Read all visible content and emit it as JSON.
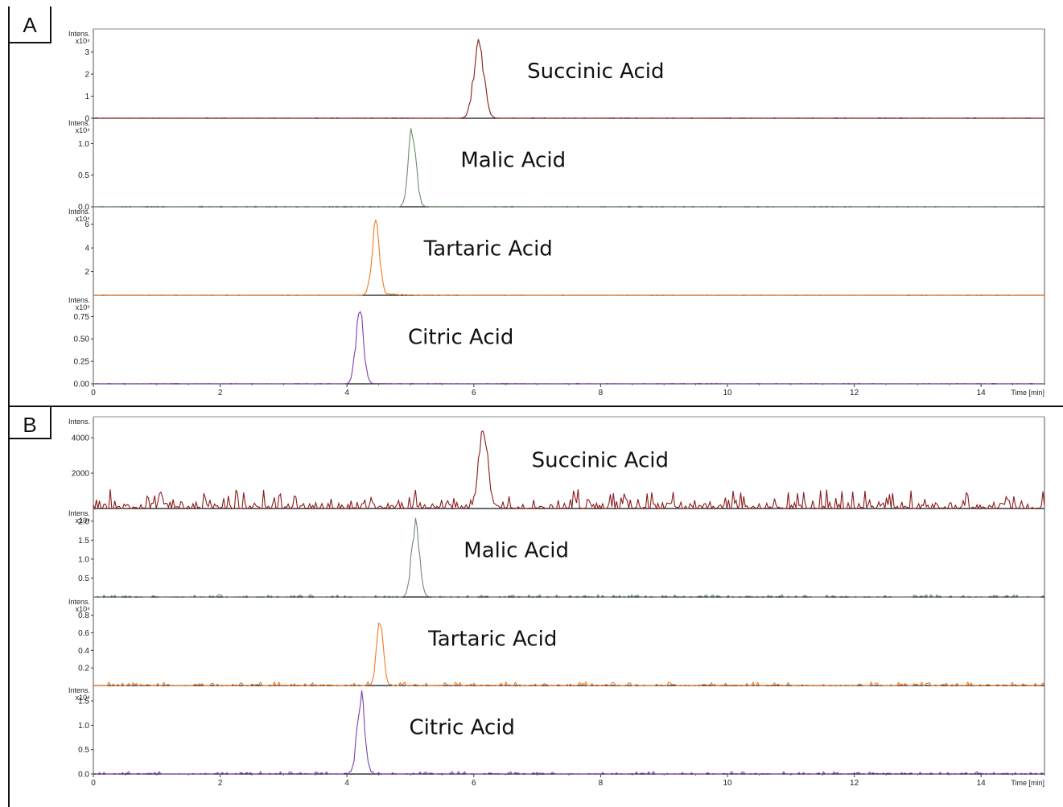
{
  "figure": {
    "x_axis": {
      "label": "Time [min]",
      "min": 0,
      "max": 15,
      "ticks": [
        0,
        2,
        4,
        6,
        8,
        10,
        12,
        14
      ]
    }
  },
  "chart_data": [
    {
      "panel": "A",
      "type": "line",
      "traces": [
        {
          "name": "Succinic Acid",
          "color": "#8b1a1a",
          "y_unit": "Intens.",
          "y_exp": "x10⁴",
          "ymax": 3.9,
          "ticks": [
            "0",
            "1",
            "2",
            "3"
          ],
          "tick_values": [
            0,
            1,
            2,
            3
          ],
          "peak_x": 6.08,
          "peak_y": 3.4,
          "peak_width": 0.08,
          "noise": 0.02,
          "tail": 0.02
        },
        {
          "name": "Malic Acid",
          "color": "#6f8a6f",
          "y_unit": "Intens.",
          "y_exp": "x10⁴",
          "ymax": 1.35,
          "ticks": [
            "0.0",
            "0.5",
            "1.0"
          ],
          "tick_values": [
            0,
            0.5,
            1.0
          ],
          "peak_x": 5.03,
          "peak_y": 1.25,
          "peak_width": 0.06,
          "noise": 0.01,
          "tail": 0.03
        },
        {
          "name": "Tartaric Acid",
          "color": "#f07a22",
          "y_unit": "Intens.",
          "y_exp": "x10⁴",
          "ymax": 7.2,
          "ticks": [
            "2",
            "4",
            "6"
          ],
          "tick_values": [
            2,
            4,
            6
          ],
          "peak_x": 4.45,
          "peak_y": 5.8,
          "peak_width": 0.06,
          "noise": 0.03,
          "tail": 0.5
        },
        {
          "name": "Citric Acid",
          "color": "#7a3fb0",
          "y_unit": "Intens.",
          "y_exp": "x10⁵",
          "ymax": 0.95,
          "ticks": [
            "0.00",
            "0.25",
            "0.50",
            "0.75"
          ],
          "tick_values": [
            0,
            0.25,
            0.5,
            0.75
          ],
          "peak_x": 4.2,
          "peak_y": 0.82,
          "peak_width": 0.06,
          "noise": 0.005,
          "tail": 0.1
        }
      ]
    },
    {
      "panel": "B",
      "type": "line",
      "traces": [
        {
          "name": "Succinic Acid",
          "color": "#8b1a1a",
          "y_unit": "Intens.",
          "y_exp": "",
          "ymax": 5000,
          "ticks": [
            "2000",
            "4000"
          ],
          "tick_values": [
            2000,
            4000
          ],
          "peak_x": 6.15,
          "peak_y": 4300,
          "peak_width": 0.07,
          "noise": 1100,
          "tail": 0.1
        },
        {
          "name": "Malic Acid",
          "color": "#6f8a6f",
          "y_unit": "Intens.",
          "y_exp": "x10⁴",
          "ymax": 2.25,
          "ticks": [
            "0.5",
            "1.0",
            "1.5",
            "2.0"
          ],
          "tick_values": [
            0.5,
            1.0,
            1.5,
            2.0
          ],
          "peak_x": 5.08,
          "peak_y": 1.95,
          "peak_width": 0.06,
          "noise": 0.06,
          "tail": 0.05
        },
        {
          "name": "Tartaric Acid",
          "color": "#f07a22",
          "y_unit": "Intens.",
          "y_exp": "x10⁴",
          "ymax": 0.97,
          "ticks": [
            "0.2",
            "0.4",
            "0.6",
            "0.8"
          ],
          "tick_values": [
            0.2,
            0.4,
            0.6,
            0.8
          ],
          "peak_x": 4.52,
          "peak_y": 0.8,
          "peak_width": 0.05,
          "noise": 0.04,
          "tail": 0.02
        },
        {
          "name": "Citric Acid",
          "color": "#7a3fb0",
          "y_unit": "Intens.",
          "y_exp": "x10⁴",
          "ymax": 1.75,
          "ticks": [
            "0.0",
            "0.5",
            "1.0",
            "1.5"
          ],
          "tick_values": [
            0,
            0.5,
            1.0,
            1.5
          ],
          "peak_x": 4.22,
          "peak_y": 1.55,
          "peak_width": 0.06,
          "noise": 0.05,
          "tail": 0.05
        }
      ]
    }
  ]
}
